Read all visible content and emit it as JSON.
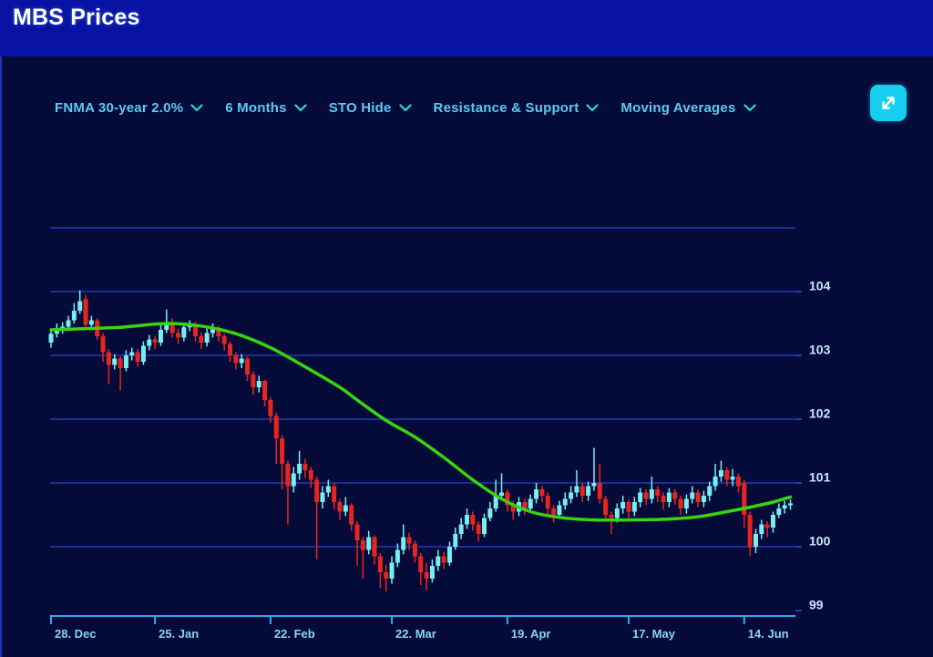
{
  "header": {
    "title": "MBS Prices"
  },
  "toolbar": {
    "dropdowns": [
      {
        "id": "instrument",
        "label": "FNMA 30-year 2.0%"
      },
      {
        "id": "timeframe",
        "label": "6 Months"
      },
      {
        "id": "sto",
        "label": "STO Hide"
      },
      {
        "id": "resistance_support",
        "label": "Resistance & Support"
      },
      {
        "id": "moving_averages",
        "label": "Moving Averages"
      }
    ],
    "expand_button": {
      "icon": "expand-diagonal-arrows"
    }
  },
  "colors": {
    "header_bg": "#0913a3",
    "panel_bg": "#050b38",
    "candle_up": "#78edf2",
    "candle_down": "#e8241e",
    "ma_line": "#38d40e",
    "gridline": "#1c3eb0",
    "axis": "#2fa9f5",
    "x_label": "#86d4f8",
    "y_label": "#c6e8fc",
    "dropdown_text": "#5fc9f2",
    "chevron": "#2ad9d4",
    "expand_btn_bg": "#16cff0"
  },
  "chart_data": {
    "type": "candlestick",
    "instrument": "FNMA 30-year 2.0%",
    "timeframe": "6 Months",
    "grid": "horizontal",
    "y_axis_side": "right",
    "ylim": [
      99,
      105
    ],
    "y_gridlines": [
      105,
      104,
      103,
      102,
      101,
      100
    ],
    "y_ticks": [
      "104",
      "103",
      "102",
      "101",
      "100",
      "99"
    ],
    "y_tick_values": [
      104,
      103,
      102,
      101,
      100,
      99
    ],
    "x_ticks": [
      {
        "label": "28. Dec",
        "day": 0
      },
      {
        "label": "25. Jan",
        "day": 18
      },
      {
        "label": "22. Feb",
        "day": 38
      },
      {
        "label": "22. Mar",
        "day": 59
      },
      {
        "label": "19. Apr",
        "day": 79
      },
      {
        "label": "17. May",
        "day": 100
      },
      {
        "label": "14. Jun",
        "day": 120
      }
    ],
    "candles": [
      [
        103.2,
        103.42,
        103.12,
        103.34
      ],
      [
        103.34,
        103.5,
        103.28,
        103.42
      ],
      [
        103.42,
        103.52,
        103.34,
        103.45
      ],
      [
        103.45,
        103.62,
        103.4,
        103.55
      ],
      [
        103.55,
        103.82,
        103.5,
        103.7
      ],
      [
        103.7,
        104.02,
        103.65,
        103.85
      ],
      [
        103.88,
        103.95,
        103.42,
        103.48
      ],
      [
        103.48,
        103.62,
        103.4,
        103.55
      ],
      [
        103.55,
        103.58,
        103.24,
        103.3
      ],
      [
        103.3,
        103.35,
        102.9,
        103.05
      ],
      [
        103.05,
        103.1,
        102.55,
        102.85
      ],
      [
        102.85,
        103.02,
        102.78,
        102.95
      ],
      [
        102.95,
        102.98,
        102.45,
        102.8
      ],
      [
        102.8,
        103.08,
        102.75,
        103.0
      ],
      [
        103.0,
        103.12,
        102.92,
        103.05
      ],
      [
        103.05,
        103.1,
        102.82,
        102.9
      ],
      [
        102.9,
        103.22,
        102.85,
        103.15
      ],
      [
        103.15,
        103.32,
        103.08,
        103.25
      ],
      [
        103.25,
        103.3,
        103.1,
        103.2
      ],
      [
        103.2,
        103.48,
        103.15,
        103.4
      ],
      [
        103.4,
        103.72,
        103.35,
        103.52
      ],
      [
        103.52,
        103.58,
        103.28,
        103.35
      ],
      [
        103.35,
        103.42,
        103.18,
        103.28
      ],
      [
        103.28,
        103.5,
        103.22,
        103.44
      ],
      [
        103.44,
        103.55,
        103.38,
        103.48
      ],
      [
        103.48,
        103.52,
        103.22,
        103.3
      ],
      [
        103.3,
        103.36,
        103.1,
        103.2
      ],
      [
        103.2,
        103.42,
        103.14,
        103.35
      ],
      [
        103.35,
        103.5,
        103.28,
        103.42
      ],
      [
        103.42,
        103.46,
        103.22,
        103.3
      ],
      [
        103.3,
        103.34,
        103.08,
        103.18
      ],
      [
        103.18,
        103.22,
        102.9,
        103.0
      ],
      [
        103.0,
        103.05,
        102.78,
        102.88
      ],
      [
        102.88,
        103.02,
        102.8,
        102.95
      ],
      [
        102.95,
        102.98,
        102.6,
        102.7
      ],
      [
        102.7,
        102.75,
        102.38,
        102.5
      ],
      [
        102.5,
        102.68,
        102.42,
        102.6
      ],
      [
        102.6,
        102.62,
        102.2,
        102.3
      ],
      [
        102.3,
        102.35,
        101.95,
        102.05
      ],
      [
        102.05,
        102.1,
        101.3,
        101.7
      ],
      [
        101.7,
        101.75,
        100.9,
        101.3
      ],
      [
        101.3,
        101.35,
        100.35,
        100.95
      ],
      [
        100.95,
        101.25,
        100.85,
        101.15
      ],
      [
        101.15,
        101.5,
        101.05,
        101.3
      ],
      [
        101.3,
        101.38,
        101.08,
        101.2
      ],
      [
        101.2,
        101.25,
        100.92,
        101.05
      ],
      [
        101.05,
        101.1,
        99.8,
        100.7
      ],
      [
        100.7,
        100.95,
        100.6,
        100.85
      ],
      [
        100.85,
        101.05,
        100.78,
        100.95
      ],
      [
        100.95,
        101.0,
        100.58,
        100.7
      ],
      [
        100.7,
        100.75,
        100.42,
        100.55
      ],
      [
        100.55,
        100.78,
        100.48,
        100.65
      ],
      [
        100.65,
        100.68,
        100.25,
        100.35
      ],
      [
        100.35,
        100.4,
        99.7,
        100.1
      ],
      [
        100.1,
        100.15,
        99.5,
        99.95
      ],
      [
        99.95,
        100.25,
        99.88,
        100.15
      ],
      [
        100.15,
        100.18,
        99.72,
        99.85
      ],
      [
        99.85,
        99.9,
        99.35,
        99.6
      ],
      [
        99.6,
        99.72,
        99.3,
        99.5
      ],
      [
        99.5,
        99.85,
        99.42,
        99.75
      ],
      [
        99.75,
        100.05,
        99.68,
        99.95
      ],
      [
        99.95,
        100.35,
        99.88,
        100.15
      ],
      [
        100.15,
        100.22,
        99.95,
        100.05
      ],
      [
        100.05,
        100.1,
        99.75,
        99.85
      ],
      [
        99.85,
        99.9,
        99.4,
        99.6
      ],
      [
        99.6,
        99.75,
        99.32,
        99.5
      ],
      [
        99.5,
        99.8,
        99.44,
        99.7
      ],
      [
        99.7,
        99.95,
        99.62,
        99.85
      ],
      [
        99.85,
        99.92,
        99.65,
        99.75
      ],
      [
        99.75,
        100.08,
        99.7,
        100.0
      ],
      [
        100.0,
        100.3,
        99.95,
        100.2
      ],
      [
        100.2,
        100.45,
        100.12,
        100.35
      ],
      [
        100.35,
        100.6,
        100.28,
        100.5
      ],
      [
        100.5,
        100.55,
        100.25,
        100.35
      ],
      [
        100.35,
        100.4,
        100.08,
        100.2
      ],
      [
        100.2,
        100.52,
        100.15,
        100.45
      ],
      [
        100.45,
        100.7,
        100.4,
        100.6
      ],
      [
        100.6,
        101.05,
        100.55,
        100.8
      ],
      [
        100.8,
        101.15,
        100.72,
        100.85
      ],
      [
        100.85,
        100.9,
        100.55,
        100.65
      ],
      [
        100.65,
        100.72,
        100.42,
        100.55
      ],
      [
        100.55,
        100.78,
        100.48,
        100.7
      ],
      [
        100.7,
        100.75,
        100.5,
        100.6
      ],
      [
        100.6,
        100.82,
        100.54,
        100.75
      ],
      [
        100.75,
        101.0,
        100.68,
        100.9
      ],
      [
        100.9,
        100.95,
        100.7,
        100.8
      ],
      [
        100.8,
        100.85,
        100.5,
        100.6
      ],
      [
        100.6,
        100.65,
        100.38,
        100.5
      ],
      [
        100.5,
        100.72,
        100.44,
        100.65
      ],
      [
        100.65,
        100.85,
        100.58,
        100.75
      ],
      [
        100.75,
        100.95,
        100.68,
        100.85
      ],
      [
        100.85,
        101.2,
        100.78,
        100.95
      ],
      [
        100.95,
        101.0,
        100.7,
        100.8
      ],
      [
        100.8,
        101.02,
        100.72,
        100.95
      ],
      [
        100.95,
        101.55,
        100.88,
        101.0
      ],
      [
        101.0,
        101.3,
        100.68,
        100.75
      ],
      [
        100.75,
        100.8,
        100.4,
        100.5
      ],
      [
        100.5,
        100.55,
        100.2,
        100.45
      ],
      [
        100.45,
        100.68,
        100.38,
        100.6
      ],
      [
        100.6,
        100.8,
        100.52,
        100.7
      ],
      [
        100.7,
        100.74,
        100.45,
        100.55
      ],
      [
        100.55,
        100.78,
        100.48,
        100.7
      ],
      [
        100.7,
        100.92,
        100.62,
        100.85
      ],
      [
        100.85,
        100.9,
        100.65,
        100.75
      ],
      [
        100.75,
        101.1,
        100.68,
        100.9
      ],
      [
        100.9,
        100.95,
        100.7,
        100.8
      ],
      [
        100.8,
        100.85,
        100.58,
        100.7
      ],
      [
        100.7,
        100.92,
        100.62,
        100.85
      ],
      [
        100.85,
        100.9,
        100.66,
        100.75
      ],
      [
        100.75,
        100.8,
        100.5,
        100.6
      ],
      [
        100.6,
        100.82,
        100.52,
        100.75
      ],
      [
        100.75,
        100.95,
        100.68,
        100.85
      ],
      [
        100.85,
        100.9,
        100.62,
        100.7
      ],
      [
        100.7,
        100.88,
        100.62,
        100.8
      ],
      [
        100.8,
        101.02,
        100.72,
        100.95
      ],
      [
        100.95,
        101.3,
        100.88,
        101.1
      ],
      [
        101.1,
        101.35,
        101.02,
        101.2
      ],
      [
        101.2,
        101.25,
        100.95,
        101.05
      ],
      [
        101.05,
        101.22,
        100.95,
        101.1
      ],
      [
        101.1,
        101.15,
        100.85,
        100.95
      ],
      [
        101.0,
        101.05,
        100.3,
        100.5
      ],
      [
        100.5,
        100.55,
        99.85,
        100.0
      ],
      [
        100.0,
        100.28,
        99.9,
        100.2
      ],
      [
        100.2,
        100.42,
        100.12,
        100.35
      ],
      [
        100.35,
        100.4,
        100.15,
        100.3
      ],
      [
        100.3,
        100.55,
        100.22,
        100.5
      ],
      [
        100.5,
        100.68,
        100.45,
        100.6
      ],
      [
        100.6,
        100.72,
        100.52,
        100.65
      ],
      [
        100.65,
        100.74,
        100.58,
        100.68
      ]
    ],
    "series": [
      {
        "name": "Moving Average",
        "type": "line",
        "points": [
          [
            0,
            103.4
          ],
          [
            6,
            103.42
          ],
          [
            12,
            103.44
          ],
          [
            20,
            103.5
          ],
          [
            26,
            103.46
          ],
          [
            32,
            103.34
          ],
          [
            38,
            103.12
          ],
          [
            44,
            102.82
          ],
          [
            50,
            102.5
          ],
          [
            53,
            102.3
          ],
          [
            58,
            101.98
          ],
          [
            63,
            101.72
          ],
          [
            68,
            101.4
          ],
          [
            73,
            101.05
          ],
          [
            78,
            100.75
          ],
          [
            83,
            100.55
          ],
          [
            88,
            100.46
          ],
          [
            94,
            100.42
          ],
          [
            100,
            100.42
          ],
          [
            106,
            100.43
          ],
          [
            112,
            100.47
          ],
          [
            117,
            100.55
          ],
          [
            121,
            100.62
          ],
          [
            125,
            100.7
          ],
          [
            128,
            100.78
          ]
        ]
      }
    ]
  }
}
